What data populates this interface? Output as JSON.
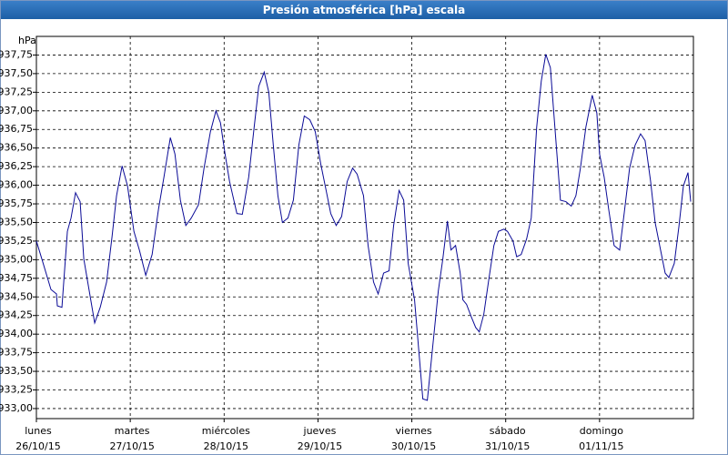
{
  "chart_data": {
    "type": "line",
    "title": "Presión atmosférica [hPa] escala",
    "y_unit": "hPa",
    "color": "#0a0a96",
    "grid": true,
    "ylim": [
      932.865,
      938.0
    ],
    "yticks": [
      {
        "value": 933,
        "label": "933,00"
      },
      {
        "value": 933.25,
        "label": "933,25"
      },
      {
        "value": 933.5,
        "label": "933,50"
      },
      {
        "value": 933.75,
        "label": "933,75"
      },
      {
        "value": 934,
        "label": "934,00"
      },
      {
        "value": 934.25,
        "label": "934,25"
      },
      {
        "value": 934.5,
        "label": "934,50"
      },
      {
        "value": 934.75,
        "label": "934,75"
      },
      {
        "value": 935,
        "label": "935,00"
      },
      {
        "value": 935.25,
        "label": "935,25"
      },
      {
        "value": 935.5,
        "label": "935,50"
      },
      {
        "value": 935.75,
        "label": "935,75"
      },
      {
        "value": 936,
        "label": "936,00"
      },
      {
        "value": 936.25,
        "label": "936,25"
      },
      {
        "value": 936.5,
        "label": "936,50"
      },
      {
        "value": 936.75,
        "label": "936,75"
      },
      {
        "value": 937,
        "label": "937,00"
      },
      {
        "value": 937.25,
        "label": "937,25"
      },
      {
        "value": 937.5,
        "label": "937,50"
      },
      {
        "value": 937.75,
        "label": "937,75"
      }
    ],
    "xlim": [
      0,
      7
    ],
    "xticks": [
      {
        "value": 0,
        "label": [
          "lunes",
          "26/10/15"
        ]
      },
      {
        "value": 1,
        "label": [
          "martes",
          "27/10/15"
        ]
      },
      {
        "value": 2,
        "label": [
          "miércoles",
          "28/10/15"
        ]
      },
      {
        "value": 3,
        "label": [
          "jueves",
          "29/10/15"
        ]
      },
      {
        "value": 4,
        "label": [
          "viernes",
          "30/10/15"
        ]
      },
      {
        "value": 5,
        "label": [
          "sábado",
          "31/10/15"
        ]
      },
      {
        "value": 6,
        "label": [
          "domingo",
          "01/11/15"
        ]
      }
    ],
    "x": [
      0,
      0.058,
      0.117,
      0.155,
      0.214,
      0.223,
      0.272,
      0.33,
      0.369,
      0.417,
      0.466,
      0.505,
      0.563,
      0.621,
      0.68,
      0.748,
      0.806,
      0.854,
      0.913,
      0.971,
      1.039,
      1.097,
      1.165,
      1.233,
      1.301,
      1.359,
      1.427,
      1.476,
      1.534,
      1.592,
      1.65,
      1.728,
      1.786,
      1.854,
      1.913,
      1.961,
      2.01,
      2.058,
      2.136,
      2.194,
      2.262,
      2.32,
      2.369,
      2.427,
      2.476,
      2.524,
      2.573,
      2.621,
      2.68,
      2.738,
      2.796,
      2.854,
      2.913,
      2.971,
      3.029,
      3.087,
      3.136,
      3.194,
      3.252,
      3.311,
      3.369,
      3.417,
      3.485,
      3.534,
      3.592,
      3.641,
      3.699,
      3.757,
      3.806,
      3.864,
      3.913,
      3.961,
      4.029,
      4.078,
      4.117,
      4.165,
      4.223,
      4.282,
      4.33,
      4.379,
      4.417,
      4.466,
      4.515,
      4.544,
      4.583,
      4.631,
      4.68,
      4.718,
      4.767,
      4.816,
      4.874,
      4.922,
      4.981,
      5.019,
      5.078,
      5.117,
      5.165,
      5.223,
      5.272,
      5.33,
      5.379,
      5.427,
      5.476,
      5.524,
      5.583,
      5.641,
      5.699,
      5.748,
      5.796,
      5.854,
      5.922,
      5.971,
      6,
      6.049,
      6.097,
      6.155,
      6.214,
      6.262,
      6.32,
      6.379,
      6.437,
      6.485,
      6.544,
      6.592,
      6.65,
      6.699,
      6.738,
      6.796,
      6.845,
      6.893,
      6.942,
      6.971
    ],
    "values": [
      935.25,
      935.01,
      934.76,
      934.6,
      934.54,
      934.38,
      934.36,
      935.38,
      935.56,
      935.9,
      935.78,
      935.01,
      934.58,
      934.15,
      934.36,
      934.7,
      935.31,
      935.86,
      936.26,
      935.99,
      935.38,
      935.13,
      934.79,
      935.07,
      935.68,
      936.11,
      936.64,
      936.42,
      935.8,
      935.46,
      935.56,
      935.74,
      936.23,
      936.72,
      937,
      936.84,
      936.42,
      936.05,
      935.62,
      935.61,
      936.11,
      936.78,
      937.33,
      937.52,
      937.25,
      936.54,
      935.86,
      935.5,
      935.56,
      935.8,
      936.54,
      936.93,
      936.88,
      936.72,
      936.29,
      935.93,
      935.62,
      935.46,
      935.58,
      936.05,
      936.23,
      936.15,
      935.86,
      935.19,
      934.7,
      934.54,
      934.82,
      934.85,
      935.46,
      935.93,
      935.8,
      934.95,
      934.46,
      933.72,
      933.13,
      933.11,
      933.84,
      934.58,
      935.01,
      935.52,
      935.13,
      935.19,
      934.82,
      934.46,
      934.4,
      934.24,
      934.09,
      934.03,
      934.27,
      934.7,
      935.19,
      935.38,
      935.41,
      935.38,
      935.25,
      935.04,
      935.07,
      935.28,
      935.56,
      936.78,
      937.4,
      937.76,
      937.58,
      936.78,
      935.8,
      935.78,
      935.72,
      935.86,
      936.23,
      936.78,
      937.21,
      936.97,
      936.42,
      936.11,
      935.68,
      935.19,
      935.13,
      935.62,
      936.23,
      936.54,
      936.69,
      936.6,
      936.05,
      935.5,
      935.13,
      934.82,
      934.76,
      934.95,
      935.44,
      935.99,
      936.17,
      935.78
    ]
  }
}
